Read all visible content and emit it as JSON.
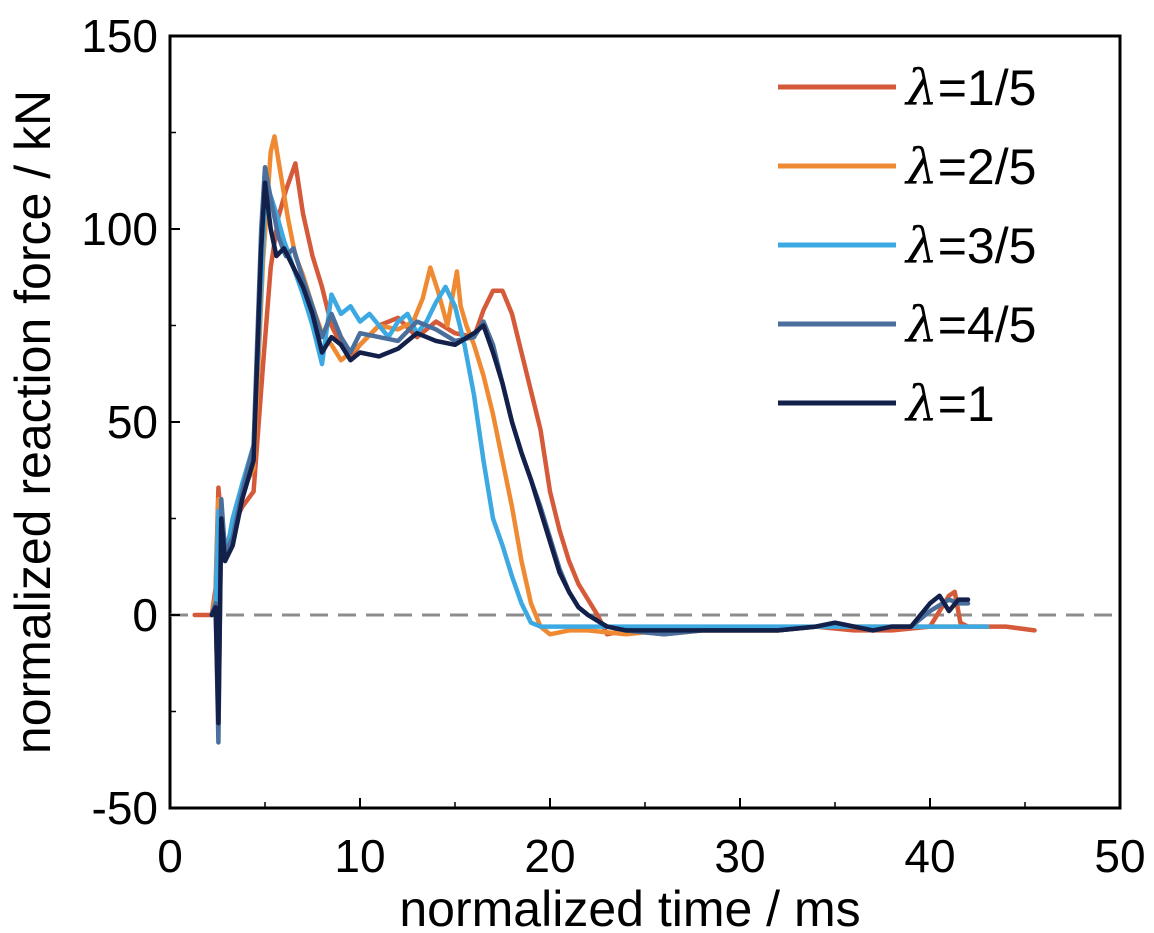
{
  "chart_data": {
    "type": "line",
    "xlabel": "normalized time / ms",
    "ylabel": "normalized reaction force / kN",
    "xlim": [
      0,
      50
    ],
    "ylim": [
      -50,
      150
    ],
    "xticks": [
      "0",
      "10",
      "20",
      "30",
      "40",
      "50"
    ],
    "yticks": [
      "-50",
      "0",
      "50",
      "100",
      "150"
    ],
    "reference_line": {
      "y": 0,
      "style": "dashed",
      "color": "#8c8c8c"
    },
    "legend_position": "top-right",
    "series": [
      {
        "name": "λ=1/5",
        "color": "#d55a3a",
        "x": [
          1.3,
          2.2,
          2.4,
          2.55,
          2.7,
          2.9,
          3.3,
          3.8,
          4.4,
          4.9,
          5.3,
          5.7,
          6.1,
          6.6,
          7.0,
          7.5,
          8.0,
          8.5,
          9.0,
          9.5,
          10.0,
          11.0,
          12.0,
          13.0,
          14.0,
          15.0,
          16.0,
          16.5,
          17.0,
          17.5,
          18.0,
          18.5,
          19.0,
          19.5,
          20.0,
          20.5,
          21.0,
          21.5,
          22.0,
          22.5,
          23.0,
          24.0,
          26.0,
          28.0,
          30.0,
          32.0,
          34.0,
          36.0,
          38.0,
          40.0,
          41.0,
          41.3,
          41.6,
          42.0,
          43.0,
          44.0,
          45.5
        ],
        "y": [
          0,
          0,
          7,
          33,
          25,
          17,
          23,
          28,
          32,
          65,
          90,
          103,
          110,
          117,
          104,
          93,
          85,
          75,
          70,
          67,
          70,
          75,
          77,
          72,
          76,
          73,
          72,
          79,
          84,
          84,
          78,
          68,
          58,
          48,
          32,
          22,
          14,
          8,
          4,
          0,
          -5,
          -4,
          -5,
          -4,
          -4,
          -4,
          -3,
          -4,
          -4,
          -3,
          5,
          6,
          -2,
          -3,
          -3,
          -3,
          -4
        ]
      },
      {
        "name": "λ=2/5",
        "color": "#ef8a33",
        "x": [
          2.2,
          2.4,
          2.55,
          2.7,
          2.9,
          3.3,
          3.8,
          4.4,
          4.9,
          5.3,
          5.5,
          5.8,
          6.2,
          6.6,
          7.0,
          7.5,
          8.0,
          8.5,
          9.0,
          9.5,
          10.0,
          11.0,
          12.0,
          12.8,
          13.3,
          13.7,
          14.1,
          14.6,
          15.1,
          15.3,
          15.6,
          16.0,
          16.5,
          17.0,
          17.5,
          18.0,
          18.5,
          19.0,
          19.5,
          20.0,
          21.0,
          22.0,
          24.0,
          26.0,
          28.0,
          30.0,
          32.0,
          34.0,
          36.0,
          38.0,
          40.0,
          42.0,
          43.0
        ],
        "y": [
          0,
          5,
          30,
          20,
          14,
          25,
          32,
          38,
          92,
          120,
          124,
          115,
          103,
          93,
          88,
          80,
          73,
          70,
          66,
          68,
          70,
          75,
          74,
          76,
          82,
          90,
          84,
          75,
          89,
          80,
          75,
          70,
          62,
          52,
          40,
          28,
          14,
          3,
          -3,
          -5,
          -4,
          -4,
          -5,
          -4,
          -4,
          -4,
          -4,
          -3,
          -3,
          -3,
          -3,
          -3,
          -3
        ]
      },
      {
        "name": "λ=3/5",
        "color": "#3ca9e2",
        "x": [
          2.2,
          2.4,
          2.55,
          2.7,
          2.9,
          3.3,
          3.8,
          4.4,
          4.8,
          5.0,
          5.2,
          5.6,
          6.0,
          6.5,
          7.0,
          7.5,
          8.0,
          8.5,
          9.0,
          9.5,
          10.0,
          10.5,
          11.0,
          11.5,
          12.0,
          12.5,
          13.0,
          13.5,
          14.0,
          14.5,
          15.0,
          15.5,
          16.0,
          16.5,
          17.0,
          17.5,
          18.0,
          18.5,
          19.0,
          19.5,
          20.0,
          21.0,
          22.0,
          24.0,
          26.0,
          28.0,
          30.0,
          32.0,
          34.0,
          36.0,
          38.0,
          40.0,
          42.0,
          43.0
        ],
        "y": [
          0,
          3,
          27,
          20,
          14,
          25,
          34,
          44,
          85,
          108,
          110,
          104,
          97,
          90,
          83,
          75,
          65,
          83,
          78,
          80,
          76,
          78,
          75,
          72,
          76,
          78,
          73,
          76,
          81,
          85,
          80,
          70,
          57,
          40,
          25,
          18,
          10,
          3,
          -2,
          -3,
          -3,
          -3,
          -3,
          -3,
          -3,
          -3,
          -3,
          -3,
          -3,
          -3,
          -3,
          -3,
          -3,
          -3
        ]
      },
      {
        "name": "λ=4/5",
        "color": "#4a6f9c",
        "x": [
          2.2,
          2.4,
          2.55,
          2.7,
          2.9,
          3.3,
          3.8,
          4.4,
          4.8,
          5.0,
          5.3,
          5.7,
          6.1,
          6.5,
          7.0,
          7.5,
          8.0,
          8.5,
          9.0,
          9.5,
          10.0,
          11.0,
          12.0,
          13.0,
          14.0,
          15.0,
          16.0,
          16.5,
          17.0,
          17.5,
          18.0,
          18.5,
          19.0,
          19.5,
          20.0,
          20.5,
          21.0,
          21.5,
          22.0,
          23.0,
          24.0,
          26.0,
          28.0,
          30.0,
          32.0,
          34.0,
          35.0,
          36.0,
          37.0,
          38.0,
          39.0,
          40.0,
          41.0,
          41.5,
          42.0
        ],
        "y": [
          0,
          3,
          -33,
          30,
          16,
          20,
          32,
          44,
          100,
          116,
          108,
          98,
          93,
          95,
          87,
          80,
          72,
          78,
          72,
          68,
          73,
          72,
          71,
          76,
          74,
          71,
          72,
          76,
          70,
          60,
          50,
          42,
          35,
          28,
          20,
          12,
          6,
          2,
          0,
          -3,
          -4,
          -5,
          -4,
          -4,
          -4,
          -3,
          -2,
          -3,
          -4,
          -3,
          -3,
          1,
          4,
          3,
          3
        ]
      },
      {
        "name": "λ=1",
        "color": "#12204a",
        "x": [
          2.2,
          2.4,
          2.55,
          2.7,
          2.9,
          3.3,
          3.8,
          4.4,
          4.8,
          5.0,
          5.3,
          5.6,
          6.0,
          6.5,
          7.0,
          7.5,
          8.0,
          8.5,
          9.0,
          9.5,
          10.0,
          11.0,
          12.0,
          13.0,
          14.0,
          15.0,
          16.0,
          16.5,
          17.0,
          17.5,
          18.0,
          18.5,
          19.0,
          19.5,
          20.0,
          20.5,
          21.0,
          21.5,
          22.0,
          23.0,
          24.0,
          26.0,
          28.0,
          30.0,
          32.0,
          34.0,
          35.0,
          36.0,
          37.0,
          38.0,
          39.0,
          39.5,
          40.0,
          40.5,
          41.0,
          41.5,
          42.0
        ],
        "y": [
          0,
          2,
          -28,
          25,
          14,
          18,
          30,
          40,
          95,
          112,
          100,
          93,
          95,
          90,
          85,
          78,
          68,
          72,
          70,
          66,
          68,
          67,
          69,
          73,
          71,
          70,
          73,
          75,
          68,
          60,
          50,
          42,
          35,
          27,
          19,
          11,
          6,
          2,
          0,
          -3,
          -4,
          -4,
          -4,
          -4,
          -4,
          -3,
          -2,
          -3,
          -4,
          -3,
          -3,
          0,
          3,
          5,
          1,
          4,
          4
        ]
      }
    ]
  }
}
